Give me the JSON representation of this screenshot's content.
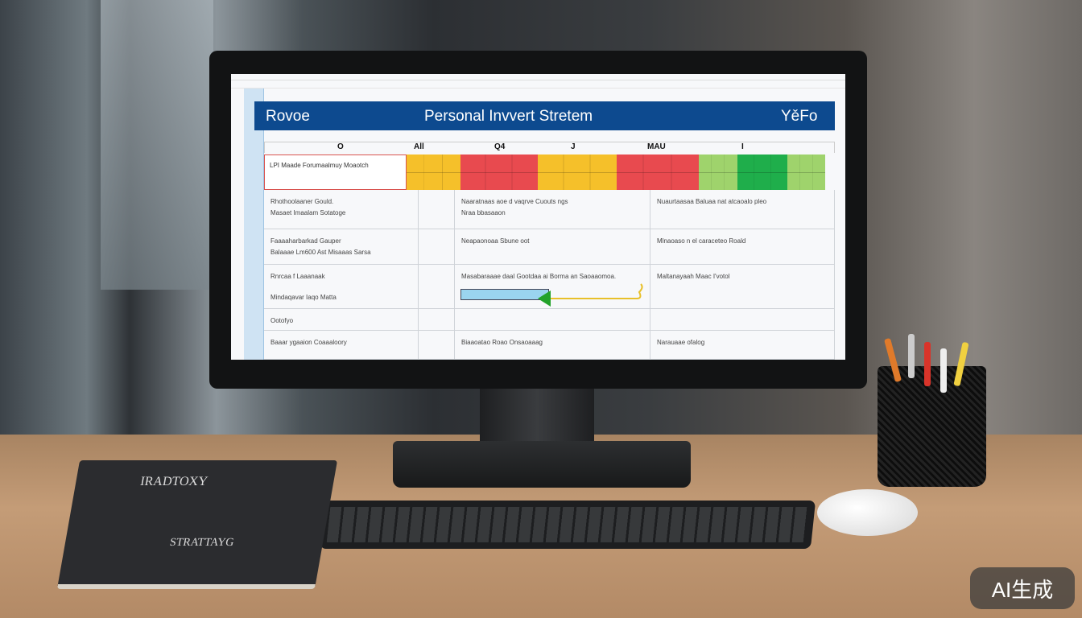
{
  "screen": {
    "header": {
      "left": "Rovoe",
      "title": "Personal Invvert Stretem",
      "right": "YěFo"
    },
    "column_markers": [
      "O",
      "All",
      "Q4",
      "J",
      "MAU",
      "I"
    ],
    "status_row": {
      "label": "LPI Maade Forumaalmuy Moaotch",
      "colors": [
        "#f5c02a",
        "#e84a4f",
        "#f5c02a",
        "#e84a4f",
        "#9fd36c",
        "#1fae4b",
        "#9fd36c"
      ]
    },
    "rows": [
      {
        "c1": [
          "Rhothoolaaner Gould.",
          "Masaet Imaalam Sotatoge"
        ],
        "c3": [
          "Naaratnaas aoe d vaqrve Cuouts ngs",
          "Nraa bbasaaon"
        ],
        "c4": [
          "Nuaurtaasaa Baluaa nat atcaoalo pleo"
        ]
      },
      {
        "c1": [
          "Faaaaharbarkad Gauper",
          "Balaaae Lm600 Ast Misaaas Sarsa"
        ],
        "c3": [
          "Neapaonoaa Sbune oot"
        ],
        "c4": [
          "Mlnaoaso n el caraceteo Roald"
        ]
      },
      {
        "c1": [
          "Rnrcaa f Laaanaak",
          "Mindaqavar Iaqo Matta"
        ],
        "c3": [
          "Masabaraaae daal Gootdaa ai Borma an Saoaaomoa."
        ],
        "c4": [
          "Maltanayaah Maac I'votol"
        ]
      },
      {
        "c1": [
          "Ootofyo"
        ],
        "c3": [
          ""
        ],
        "c4": [
          ""
        ]
      },
      {
        "c1": [
          "Baaar ygaaion Coaaaloory"
        ],
        "c3": [
          "Biaaoatao Roao Onsaoaaag"
        ],
        "c4": [
          "Narauaae ofalog"
        ]
      }
    ]
  },
  "notebook": {
    "title": "IRADTOXY",
    "subtitle": "STRATTAYG"
  },
  "watermark": "AI生成"
}
